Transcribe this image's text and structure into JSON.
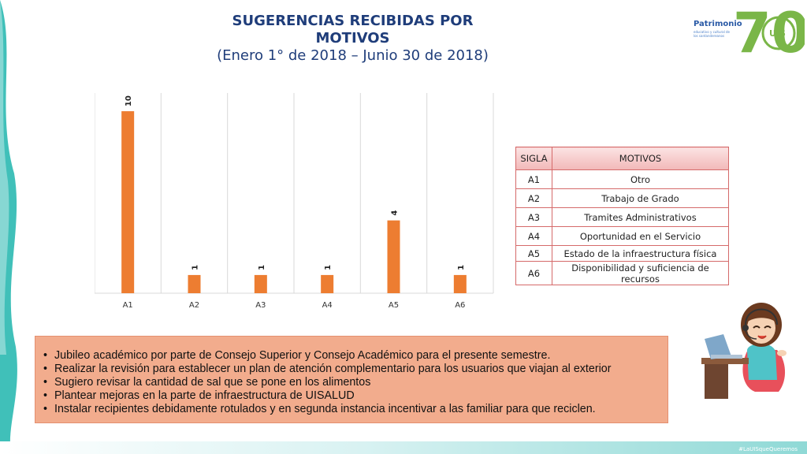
{
  "slide": {
    "title_line1": "SUGERENCIAS RECIBIDAS POR MOTIVOS",
    "title_line2": "(Enero 1° de 2018 – Junio 30 de 2018)",
    "hashtag": "#LaUISqueQueremos"
  },
  "logo": {
    "brand": "Patrimonio",
    "brand_sub": "educativo y cultural de los santandereanos",
    "number": "70",
    "uis": "UIS"
  },
  "chart_data": {
    "type": "bar",
    "categories": [
      "A1",
      "A2",
      "A3",
      "A4",
      "A5",
      "A6"
    ],
    "values": [
      10,
      1,
      1,
      1,
      4,
      1
    ],
    "data_labels": [
      "10",
      "1",
      "1",
      "1",
      "4",
      "1"
    ],
    "title": "SUGERENCIAS RECIBIDAS POR MOTIVOS (Enero 1° de 2018 – Junio 30 de 2018)",
    "xlabel": "",
    "ylabel": "",
    "ylim": [
      0,
      11
    ],
    "grid": "vertical",
    "legend": "none",
    "bar_color": "#ed7d31",
    "grid_color": "#d9d9d9"
  },
  "legend_table": {
    "headers": [
      "SIGLA",
      "MOTIVOS"
    ],
    "rows": [
      {
        "sigla": "A1",
        "motivo": "Otro"
      },
      {
        "sigla": "A2",
        "motivo": "Trabajo de Grado"
      },
      {
        "sigla": "A3",
        "motivo": "Tramites Administrativos"
      },
      {
        "sigla": "A4",
        "motivo": "Oportunidad en el Servicio"
      },
      {
        "sigla": "A5",
        "motivo": "Estado de la infraestructura física"
      },
      {
        "sigla": "A6",
        "motivo": "Disponibilidad y suficiencia de recursos"
      }
    ]
  },
  "notes": [
    "Jubileo académico por parte de Consejo Superior y Consejo Académico para el presente semestre.",
    "Realizar la revisión para establecer  un plan de atención complementario para los usuarios que viajan al exterior",
    "Sugiero revisar la cantidad de sal que se pone en los alimentos",
    "Plantear mejoras en la parte de infraestructura de UISALUD",
    "Instalar recipientes debidamente rotulados y en segunda instancia incentivar  a las familiar para que reciclen."
  ],
  "colors": {
    "title": "#1f3d7a",
    "notes_bg": "#f2ac8d",
    "table_border": "#d56a6a",
    "accent_teal": "#1fb5ad",
    "logo_green": "#7ab648"
  }
}
